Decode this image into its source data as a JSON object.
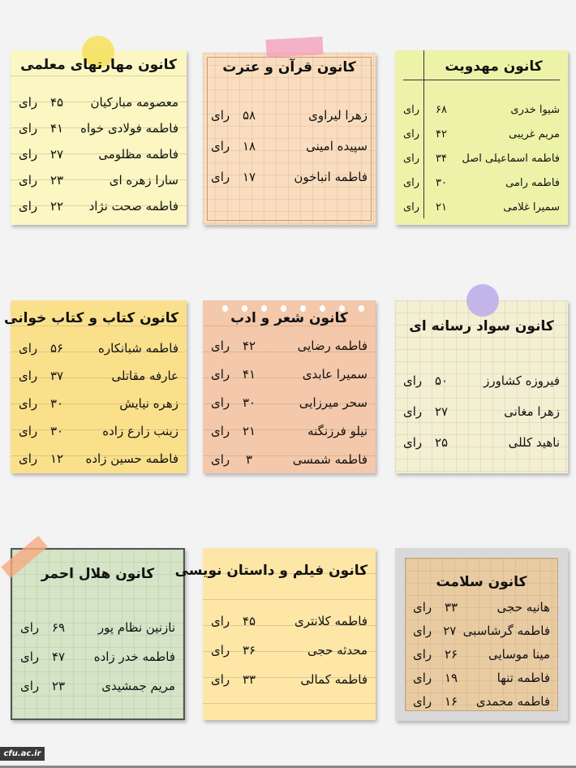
{
  "cards": [
    {
      "title": "کانون مهارتهای معلمی",
      "color": "#fbf6c2",
      "rows": [
        [
          "معصومه مبارکیان",
          "۴۵",
          "رای"
        ],
        [
          "فاطمه فولادی خواه",
          "۴۱",
          "رای"
        ],
        [
          "فاطمه مظلومی",
          "۲۷",
          "رای"
        ],
        [
          "سارا زهره ای",
          "۲۳",
          "رای"
        ],
        [
          "فاطمه صحت نژاد",
          "۲۲",
          "رای"
        ]
      ]
    },
    {
      "title": "کانون قرآن و عترت",
      "color": "#f9ddbe",
      "rows": [
        [
          "زهرا لیراوی",
          "۵۸",
          "رای"
        ],
        [
          "سپیده امینی",
          "۱۸",
          "رای"
        ],
        [
          "فاطمه انباخون",
          "۱۷",
          "رای"
        ]
      ]
    },
    {
      "title": "کانون مهدویت",
      "color": "#ecf3a8",
      "rows": [
        [
          "شیوا خدری",
          "۶۸",
          "رای"
        ],
        [
          "مریم غریبی",
          "۴۲",
          "رای"
        ],
        [
          "فاطمه اسماعیلی اصل",
          "۳۴",
          "رای"
        ],
        [
          "فاطمه رامی",
          "۳۰",
          "رای"
        ],
        [
          "سمیرا غلامی",
          "۲۱",
          "رای"
        ]
      ]
    },
    {
      "title": "کانون کتاب و کتاب خوانی",
      "color": "#fbe08c",
      "rows": [
        [
          "فاطمه شبانکاره",
          "۵۶",
          "رای"
        ],
        [
          "عارفه مقاتلی",
          "۳۷",
          "رای"
        ],
        [
          "زهره نیایش",
          "۳۰",
          "رای"
        ],
        [
          "زینب زارع زاده",
          "۳۰",
          "رای"
        ],
        [
          "فاطمه حسین زاده",
          "۱۲",
          "رای"
        ]
      ]
    },
    {
      "title": "کانون شعر و ادب",
      "color": "#f4c8aa",
      "rows": [
        [
          "فاطمه رضایی",
          "۴۲",
          "رای"
        ],
        [
          "سمیرا عابدی",
          "۴۱",
          "رای"
        ],
        [
          "سحر میرزایی",
          "۳۰",
          "رای"
        ],
        [
          "نیلو فرزنگنه",
          "۲۱",
          "رای"
        ],
        [
          "فاطمه شمسی",
          "۳",
          "رای"
        ]
      ]
    },
    {
      "title": "کانون سواد رسانه ای",
      "color": "#f3efd3",
      "rows": [
        [
          "فیروزه کشاورز",
          "۵۰",
          "رای"
        ],
        [
          "زهرا مغانی",
          "۲۷",
          "رای"
        ],
        [
          "ناهید کللی",
          "۲۵",
          "رای"
        ]
      ]
    },
    {
      "title": "کانون هلال احمر",
      "color": "#d4e4c6",
      "rows": [
        [
          "نازنین نظام پور",
          "۶۹",
          "رای"
        ],
        [
          "فاطمه خدر زاده",
          "۴۷",
          "رای"
        ],
        [
          "مریم جمشیدی",
          "۲۳",
          "رای"
        ]
      ]
    },
    {
      "title": "کانون فیلم و داستان نویسی",
      "color": "#fde6a6",
      "rows": [
        [
          "فاطمه کلانتری",
          "۴۵",
          "رای"
        ],
        [
          "محدثه حجی",
          "۳۶",
          "رای"
        ],
        [
          "فاطمه کمالی",
          "۳۳",
          "رای"
        ]
      ]
    },
    {
      "title": "کانون سلامت",
      "color": "#e9cba2",
      "rows": [
        [
          "هانیه حجی",
          "۳۳",
          "رای"
        ],
        [
          "فاطمه گرشاسبی",
          "۲۷",
          "رای"
        ],
        [
          "مینا موسایی",
          "۲۶",
          "رای"
        ],
        [
          "فاطمه تنها",
          "۱۹",
          "رای"
        ],
        [
          "فاطمه محمدی",
          "۱۶",
          "رای"
        ]
      ]
    }
  ],
  "logo": "cfu.ac.ir"
}
